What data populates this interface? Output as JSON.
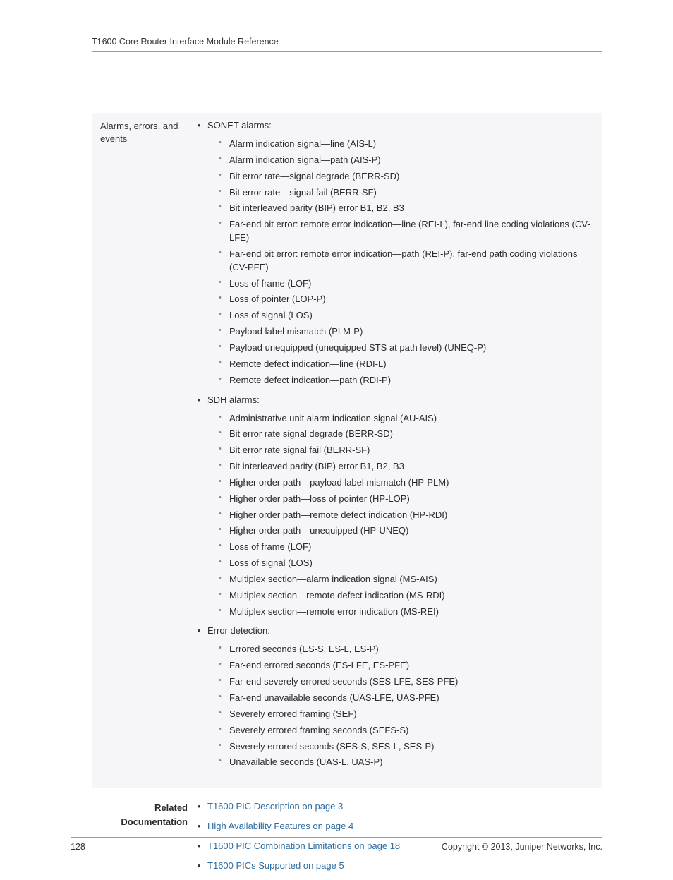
{
  "header": {
    "title": "T1600 Core Router Interface Module Reference"
  },
  "row": {
    "label": "Alarms, errors, and events",
    "groups": [
      {
        "title": "SONET alarms:",
        "items": [
          "Alarm indication signal—line (AIS-L)",
          "Alarm indication signal—path (AIS-P)",
          "Bit error rate—signal degrade (BERR-SD)",
          "Bit error rate—signal fail (BERR-SF)",
          "Bit interleaved parity (BIP) error B1, B2, B3",
          "Far-end bit error: remote error indication—line (REI-L), far-end line coding violations (CV-LFE)",
          "Far-end bit error: remote error indication—path (REI-P), far-end path coding violations (CV-PFE)",
          "Loss of frame (LOF)",
          "Loss of pointer (LOP-P)",
          "Loss of signal (LOS)",
          "Payload label mismatch (PLM-P)",
          "Payload unequipped (unequipped STS at path level) (UNEQ-P)",
          "Remote defect indication—line (RDI-L)",
          "Remote defect indication—path (RDI-P)"
        ]
      },
      {
        "title": "SDH alarms:",
        "items": [
          "Administrative unit alarm indication signal (AU-AIS)",
          "Bit error rate signal degrade (BERR-SD)",
          "Bit error rate signal fail (BERR-SF)",
          "Bit interleaved parity (BIP) error B1, B2, B3",
          "Higher order path—payload label mismatch (HP-PLM)",
          "Higher order path—loss of pointer (HP-LOP)",
          "Higher order path—remote defect indication (HP-RDI)",
          "Higher order path—unequipped (HP-UNEQ)",
          "Loss of frame (LOF)",
          "Loss of signal (LOS)",
          "Multiplex section—alarm indication signal (MS-AIS)",
          "Multiplex section—remote defect indication (MS-RDI)",
          "Multiplex section—remote error indication (MS-REI)"
        ]
      },
      {
        "title": "Error detection:",
        "items": [
          "Errored seconds (ES-S, ES-L, ES-P)",
          "Far-end errored seconds (ES-LFE, ES-PFE)",
          "Far-end severely errored seconds (SES-LFE, SES-PFE)",
          "Far-end unavailable seconds (UAS-LFE, UAS-PFE)",
          "Severely errored framing (SEF)",
          "Severely errored framing seconds (SEFS-S)",
          "Severely errored seconds (SES-S, SES-L, SES-P)",
          "Unavailable seconds (UAS-L, UAS-P)"
        ]
      }
    ]
  },
  "related": {
    "heading": "Related Documentation",
    "links": [
      {
        "text": "T1600 PIC Description on page 3"
      },
      {
        "text": "High Availability Features on page 4"
      },
      {
        "text": "T1600 PIC Combination Limitations on page 18"
      },
      {
        "text": "T1600 PICs Supported on page 5"
      }
    ]
  },
  "footer": {
    "page": "128",
    "copyright": "Copyright © 2013, Juniper Networks, Inc."
  },
  "colors": {
    "link": "#2d6ca2",
    "text": "#2b2b2b",
    "row_bg": "#f6f6f8",
    "border": "#9a9a9a"
  }
}
